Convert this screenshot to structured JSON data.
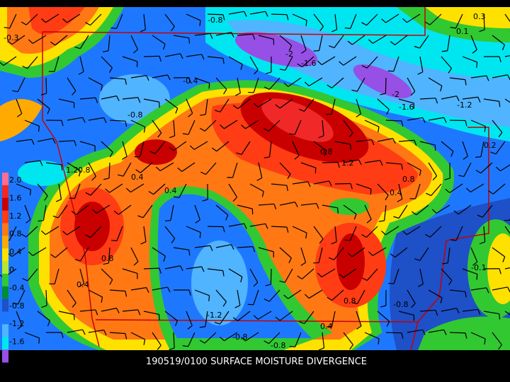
{
  "title": "190519/0100 SURFACE MOISTURE DIVERGENCE",
  "colorbar": {
    "colors": [
      "#ff6e8c",
      "#f02828",
      "#c80000",
      "#ff3c14",
      "#ff7814",
      "#ffaa00",
      "#ffe100",
      "#b4e632",
      "#32c832",
      "#008c3c",
      "#1e50c8",
      "#1e78ff",
      "#50b4ff",
      "#00e6f0",
      "#9650e6"
    ],
    "labels": [
      "2.0",
      "1.6",
      "1.2",
      "0.8",
      "0.4",
      "0",
      "-0.4",
      "-0.8",
      "-1.2",
      "-1.6"
    ]
  },
  "contour_labels": [
    "-0.8",
    "-2",
    "-1.6",
    "-2",
    "-1.6",
    "-1.2",
    "-0.8",
    "-0.4",
    "0.8",
    "1.2",
    "0.8",
    "0.4",
    "1.2",
    "0.8",
    "0.4",
    "0.4",
    "0.8",
    "0.4",
    "-1.2",
    "-0.8",
    "-0.8",
    "0.8",
    "-0.8",
    "0.4",
    "-0.3",
    "0.1",
    "0.3",
    "-0.1",
    "0.2"
  ]
}
